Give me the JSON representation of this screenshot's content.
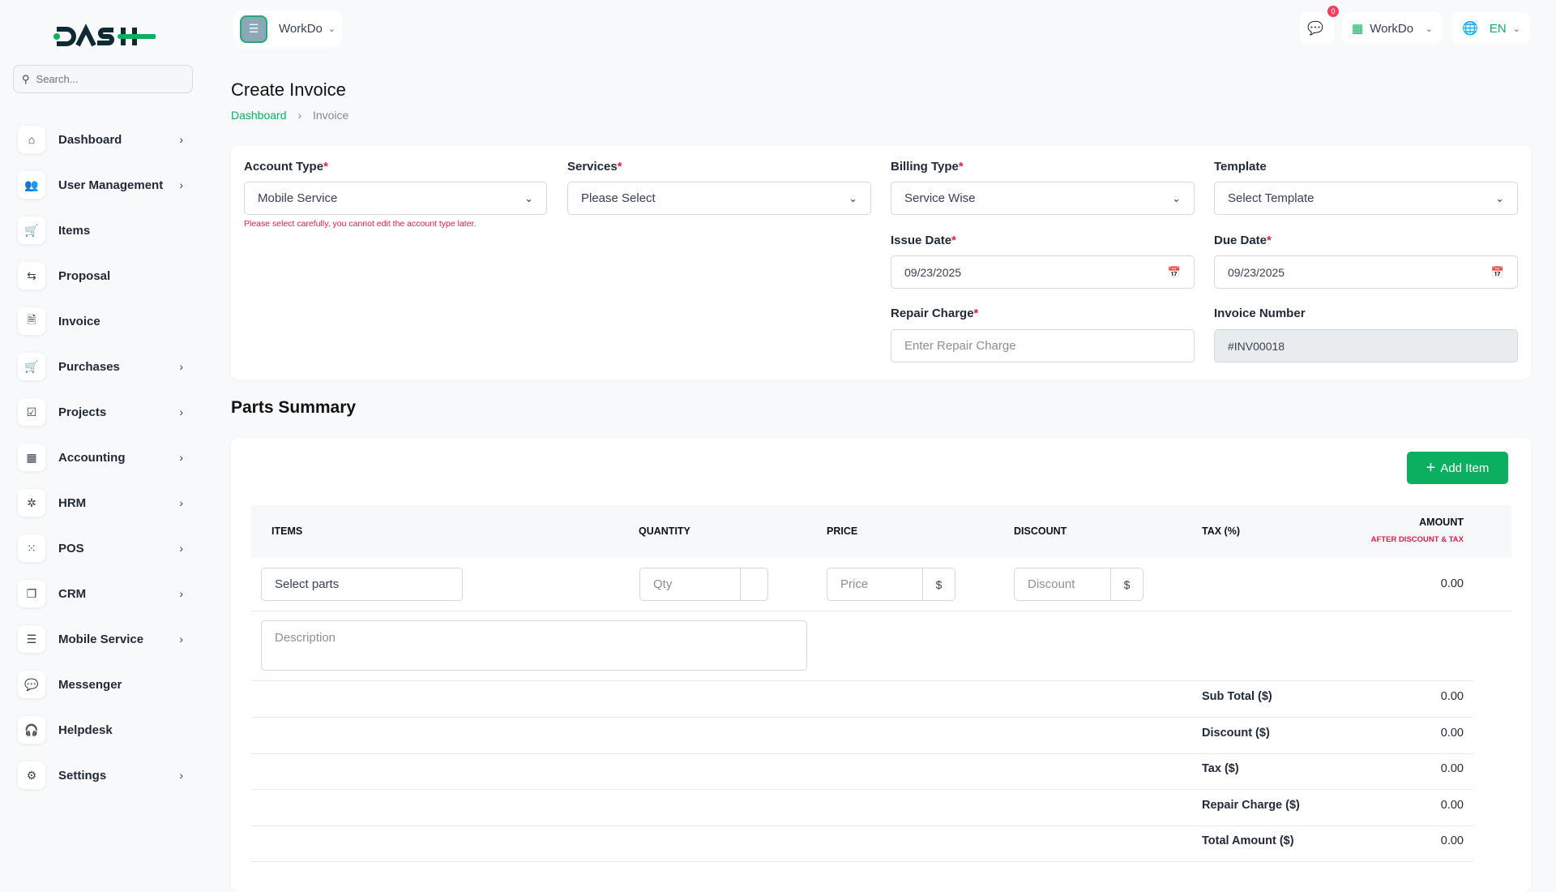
{
  "brand": {
    "logo_text": "DASH",
    "accent": "#0caf60"
  },
  "search": {
    "placeholder": "Search..."
  },
  "sidebar": {
    "items": [
      {
        "label": "Dashboard",
        "icon": "home-icon",
        "chevron": true
      },
      {
        "label": "User Management",
        "icon": "users-icon",
        "chevron": true
      },
      {
        "label": "Items",
        "icon": "cart-icon",
        "chevron": false
      },
      {
        "label": "Proposal",
        "icon": "proposal-icon",
        "chevron": false
      },
      {
        "label": "Invoice",
        "icon": "file-icon",
        "chevron": false
      },
      {
        "label": "Purchases",
        "icon": "cart-icon",
        "chevron": true
      },
      {
        "label": "Projects",
        "icon": "check-square-icon",
        "chevron": true
      },
      {
        "label": "Accounting",
        "icon": "grid-icon",
        "chevron": true
      },
      {
        "label": "HRM",
        "icon": "hrm-icon",
        "chevron": true
      },
      {
        "label": "POS",
        "icon": "dots-grid-icon",
        "chevron": true
      },
      {
        "label": "CRM",
        "icon": "layers-icon",
        "chevron": true
      },
      {
        "label": "Mobile Service",
        "icon": "menu-icon",
        "chevron": true
      },
      {
        "label": "Messenger",
        "icon": "chat-icon",
        "chevron": false
      },
      {
        "label": "Helpdesk",
        "icon": "headset-icon",
        "chevron": false
      },
      {
        "label": "Settings",
        "icon": "gear-icon",
        "chevron": true
      }
    ]
  },
  "header": {
    "workspace": "WorkDo",
    "notification_count": "0",
    "company": "WorkDo",
    "language": "EN"
  },
  "page": {
    "title": "Create Invoice",
    "breadcrumb": [
      "Dashboard",
      "Invoice"
    ]
  },
  "form": {
    "account_type": {
      "label": "Account Type",
      "value": "Mobile Service",
      "hint": "Please select carefully, you cannot edit the account type later."
    },
    "services": {
      "label": "Services",
      "value": "Please Select"
    },
    "billing_type": {
      "label": "Billing Type",
      "value": "Service Wise"
    },
    "template": {
      "label": "Template",
      "value": "Select Template"
    },
    "issue_date": {
      "label": "Issue Date",
      "value": "09/23/2025"
    },
    "due_date": {
      "label": "Due Date",
      "value": "09/23/2025"
    },
    "repair_charge": {
      "label": "Repair Charge",
      "placeholder": "Enter Repair Charge"
    },
    "invoice_number": {
      "label": "Invoice Number",
      "value": "#INV00018"
    },
    "required_mark": "*"
  },
  "parts": {
    "title": "Parts Summary",
    "add_item": "Add Item",
    "columns": {
      "items": "ITEMS",
      "quantity": "QUANTITY",
      "price": "PRICE",
      "discount": "DISCOUNT",
      "tax": "TAX (%)",
      "amount": "AMOUNT",
      "amount_sub": "AFTER DISCOUNT & TAX"
    },
    "row": {
      "parts_placeholder": "Select parts",
      "qty_placeholder": "Qty",
      "price_placeholder": "Price",
      "price_suffix": "$",
      "discount_placeholder": "Discount",
      "discount_suffix": "$",
      "amount": "0.00",
      "description_placeholder": "Description"
    },
    "summary": [
      {
        "label": "Sub Total ($)",
        "value": "0.00"
      },
      {
        "label": "Discount ($)",
        "value": "0.00"
      },
      {
        "label": "Tax ($)",
        "value": "0.00"
      },
      {
        "label": "Repair Charge ($)",
        "value": "0.00"
      },
      {
        "label": "Total Amount ($)",
        "value": "0.00"
      }
    ]
  }
}
